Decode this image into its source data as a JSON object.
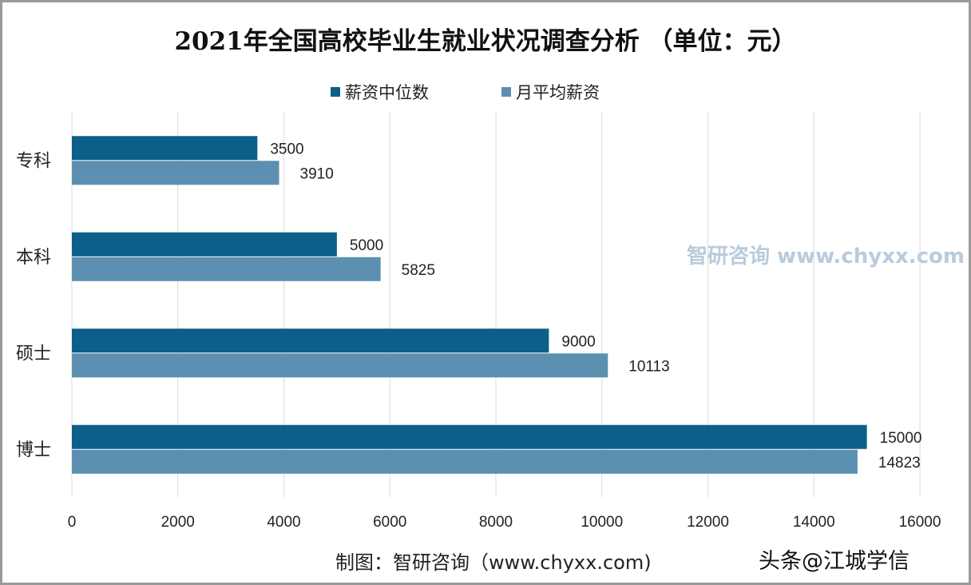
{
  "chart_data": {
    "type": "bar",
    "orientation": "horizontal",
    "title": "2021年全国高校毕业生就业状况调查分析 （单位：元）",
    "categories": [
      "专科",
      "本科",
      "硕士",
      "博士"
    ],
    "series": [
      {
        "name": "薪资中位数",
        "color": "#0b5f88",
        "values": [
          3500,
          5000,
          9000,
          15000
        ]
      },
      {
        "name": "月平均薪资",
        "color": "#5b90b0",
        "values": [
          3910,
          5825,
          10113,
          14823
        ]
      }
    ],
    "xlim": [
      0,
      16000
    ],
    "xticks": [
      0,
      2000,
      4000,
      6000,
      8000,
      10000,
      12000,
      14000,
      16000
    ],
    "grid": true,
    "legend_position": "top"
  },
  "caption": "制图：智研咨询（www.chyxx.com)",
  "credit_watermark": "头条@江城学信",
  "watermark": "智研咨询 www.chyxx.com"
}
